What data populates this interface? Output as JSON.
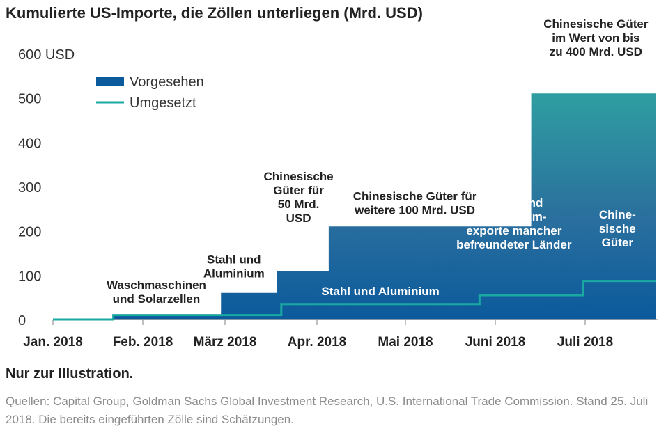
{
  "title": "Kumulierte US-Importe, die Zöllen unterliegen (Mrd. USD)",
  "note": "Nur zur Illustration.",
  "sources": "Quellen: Capital Group, Goldman Sachs Global Investment Research, U.S. International Trade Commission. Stand 25. Juli 2018. Die bereits eingeführten Zölle sind Schätzungen.",
  "colors": {
    "planned": "#0b5a9c",
    "planned_top": "#2f9ea0",
    "implemented": "#1aa9a0",
    "axis": "#aaaaaa"
  },
  "chart_data": {
    "type": "area",
    "x_unit": "months since Jan. 2018",
    "xlim": [
      0,
      7.0
    ],
    "ylim": [
      0,
      600
    ],
    "y_ticks": [
      {
        "value": 0,
        "label": "0"
      },
      {
        "value": 100,
        "label": "100"
      },
      {
        "value": 200,
        "label": "200"
      },
      {
        "value": 300,
        "label": "300"
      },
      {
        "value": 400,
        "label": "400"
      },
      {
        "value": 500,
        "label": "500"
      },
      {
        "value": 600,
        "label": "600 USD"
      }
    ],
    "x_ticks": [
      {
        "value": 0,
        "label": "Jan. 2018"
      },
      {
        "value": 1,
        "label": "Feb. 2018"
      },
      {
        "value": 2,
        "label": "März 2018"
      },
      {
        "value": 3,
        "label": "Apr. 2018"
      },
      {
        "value": 4,
        "label": "Mai 2018"
      },
      {
        "value": 5,
        "label": "Juni 2018"
      },
      {
        "value": 6,
        "label": "Juli 2018"
      }
    ],
    "legend": [
      {
        "name": "Vorgesehen",
        "kind": "area"
      },
      {
        "name": "Umgesetzt",
        "kind": "line"
      }
    ],
    "series": [
      {
        "name": "Vorgesehen",
        "steps": [
          [
            0,
            0
          ],
          [
            0.7,
            10
          ],
          [
            1.95,
            60
          ],
          [
            2.6,
            110
          ],
          [
            3.2,
            210
          ],
          [
            5.55,
            510
          ],
          [
            6.95,
            510
          ]
        ]
      },
      {
        "name": "Umgesetzt",
        "steps": [
          [
            0,
            0
          ],
          [
            0.7,
            10
          ],
          [
            2.65,
            35
          ],
          [
            4.95,
            55
          ],
          [
            6.15,
            87
          ],
          [
            6.95,
            87
          ]
        ]
      }
    ],
    "annotations": [
      {
        "lines": [
          "Waschmaschinen",
          "und Solarzellen"
        ],
        "x": 1.2,
        "y": 38,
        "color": "dark"
      },
      {
        "lines": [
          "Stahl und",
          "Aluminium"
        ],
        "x": 2.1,
        "y": 95,
        "color": "dark"
      },
      {
        "lines": [
          "Chinesische",
          "Güter für",
          "50 Mrd.",
          "USD"
        ],
        "x": 2.85,
        "y": 220,
        "color": "dark"
      },
      {
        "lines": [
          "Chinesische Güter für",
          "weitere 100 Mrd. USD"
        ],
        "x": 4.2,
        "y": 238,
        "color": "dark"
      },
      {
        "lines": [
          "Chinesische Güter",
          "im Wert von bis",
          "zu 400 Mrd. USD"
        ],
        "x": 6.3,
        "y": 595,
        "color": "dark"
      },
      {
        "lines": [
          "Stahl und Aluminium"
        ],
        "x": 3.8,
        "y": 55,
        "color": "white"
      },
      {
        "lines": [
          "Stahl- und",
          "Aluminium-",
          "exporte mancher",
          "befreundeter Länder"
        ],
        "x": 5.35,
        "y": 160,
        "color": "white"
      },
      {
        "lines": [
          "Chine-",
          "sische",
          "Güter"
        ],
        "x": 6.55,
        "y": 165,
        "color": "white"
      }
    ]
  }
}
